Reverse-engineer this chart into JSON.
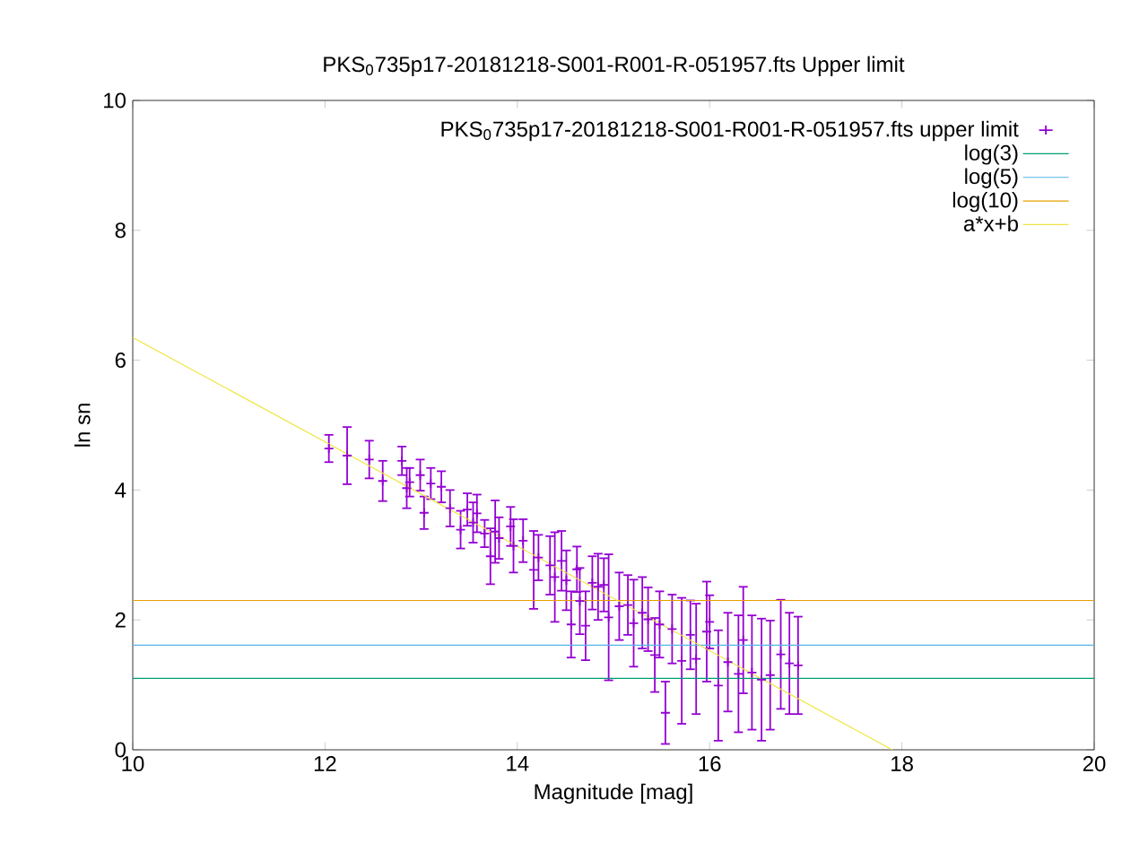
{
  "chart_data": {
    "type": "scatter",
    "title": "PKS$_{0}$735p17-20181218-S001-R001-R-051957.fts Upper limit",
    "xlabel": "Magnitude [mag]",
    "ylabel": "ln sn",
    "xlim": [
      10,
      20
    ],
    "ylim": [
      0,
      10
    ],
    "xticks": [
      10,
      12,
      14,
      16,
      18,
      20
    ],
    "yticks": [
      0,
      2,
      4,
      6,
      8,
      10
    ],
    "grid": false,
    "legend": "top right",
    "series": [
      {
        "name": "PKS$_{0}$735p17-20181218-S001-R001-R-051957.fts upper limit",
        "marker": "cross",
        "color": "#9400d3",
        "x": [
          12.04,
          12.23,
          12.46,
          12.6,
          12.8,
          12.85,
          12.88,
          12.99,
          13.03,
          13.1,
          13.21,
          13.3,
          13.41,
          13.48,
          13.54,
          13.58,
          13.66,
          13.72,
          13.77,
          13.81,
          13.93,
          13.96,
          14.06,
          14.17,
          14.22,
          14.34,
          14.39,
          14.46,
          14.51,
          14.56,
          14.62,
          14.65,
          14.71,
          14.78,
          14.84,
          14.9,
          14.95,
          15.06,
          15.15,
          15.21,
          15.3,
          15.36,
          15.43,
          15.48,
          15.54,
          15.61,
          15.71,
          15.8,
          15.86,
          15.97,
          16.0,
          16.09,
          16.19,
          16.3,
          16.35,
          16.44,
          16.54,
          16.63,
          16.74,
          16.83,
          16.92
        ],
        "values": [
          4.64,
          4.53,
          4.47,
          4.14,
          4.45,
          4.03,
          4.12,
          4.23,
          3.65,
          4.1,
          4.05,
          3.72,
          3.39,
          3.7,
          3.5,
          3.64,
          3.33,
          2.98,
          3.36,
          3.26,
          3.44,
          3.14,
          3.22,
          2.77,
          2.96,
          2.84,
          2.66,
          2.91,
          2.61,
          1.93,
          2.78,
          2.29,
          1.91,
          2.57,
          2.51,
          2.54,
          2.04,
          2.21,
          2.23,
          1.95,
          2.11,
          2.01,
          1.46,
          1.93,
          0.57,
          1.86,
          1.37,
          1.77,
          1.4,
          1.82,
          1.97,
          0.99,
          1.35,
          1.17,
          1.69,
          1.19,
          1.08,
          1.15,
          1.47,
          1.33,
          1.3
        ],
        "errors": [
          0.21,
          0.44,
          0.29,
          0.31,
          0.22,
          0.31,
          0.22,
          0.24,
          0.25,
          0.24,
          0.24,
          0.28,
          0.29,
          0.25,
          0.31,
          0.29,
          0.21,
          0.43,
          0.48,
          0.32,
          0.3,
          0.41,
          0.33,
          0.6,
          0.35,
          0.45,
          0.69,
          0.46,
          0.46,
          0.51,
          0.35,
          0.51,
          0.53,
          0.41,
          0.51,
          0.41,
          0.97,
          0.52,
          0.46,
          0.67,
          0.55,
          0.49,
          0.57,
          0.51,
          0.48,
          0.53,
          0.97,
          0.53,
          0.85,
          0.77,
          0.41,
          0.85,
          0.76,
          0.9,
          0.82,
          0.88,
          0.94,
          0.84,
          0.84,
          0.78,
          0.75
        ]
      },
      {
        "name": "log(3)",
        "type": "line",
        "color": "#009e73",
        "x": [
          10,
          20
        ],
        "values": [
          1.1,
          1.1
        ]
      },
      {
        "name": "log(5)",
        "type": "line",
        "color": "#56b4e9",
        "x": [
          10,
          20
        ],
        "values": [
          1.61,
          1.61
        ]
      },
      {
        "name": "log(10)",
        "type": "line",
        "color": "#e69f00",
        "x": [
          10,
          20
        ],
        "values": [
          2.3,
          2.3
        ]
      },
      {
        "name": "a*x+b",
        "type": "line",
        "color": "#f0e442",
        "x": [
          10,
          17.9
        ],
        "values": [
          6.35,
          0
        ]
      }
    ]
  }
}
